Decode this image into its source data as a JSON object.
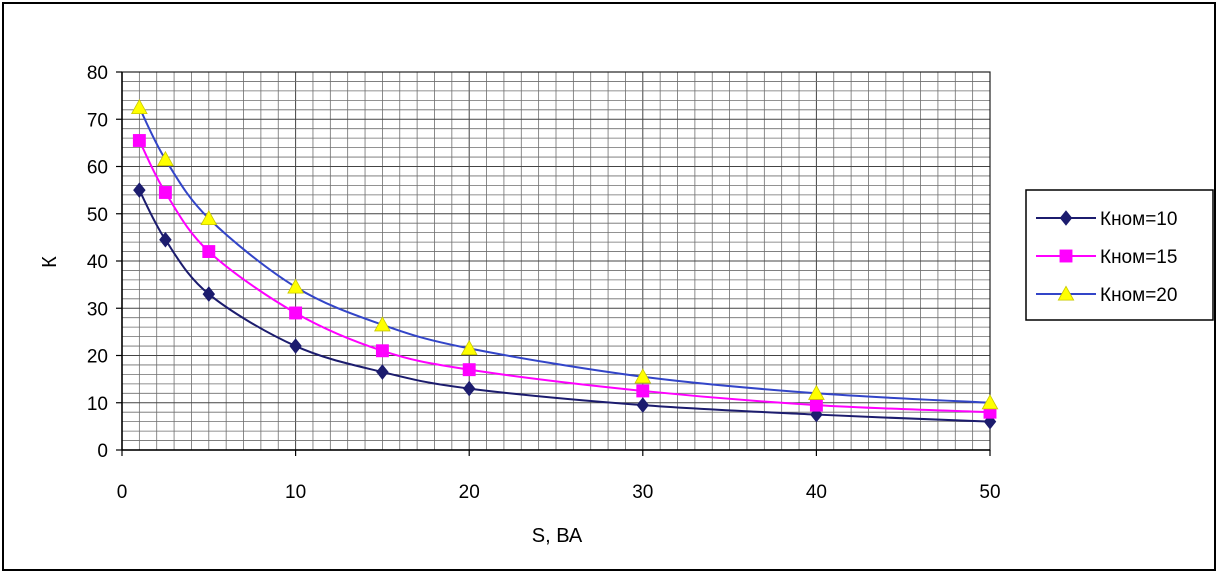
{
  "chart_data": {
    "type": "line",
    "xlabel": "S, ВА",
    "ylabel": "К",
    "xlim": [
      0,
      50
    ],
    "ylim": [
      0,
      80
    ],
    "x_ticks": [
      0,
      10,
      20,
      30,
      40,
      50
    ],
    "y_ticks": [
      0,
      10,
      20,
      30,
      40,
      50,
      60,
      70,
      80
    ],
    "x_minor_step": 1,
    "y_minor_step": 2,
    "grid": true,
    "legend_position": "right",
    "series": [
      {
        "name": "Кном=10",
        "color": "#1c1c6e",
        "marker": "diamond",
        "points": [
          [
            1,
            55
          ],
          [
            2.5,
            44.5
          ],
          [
            5,
            33
          ],
          [
            10,
            22
          ],
          [
            15,
            16.5
          ],
          [
            20,
            13
          ],
          [
            30,
            9.5
          ],
          [
            40,
            7.5
          ],
          [
            50,
            6
          ]
        ]
      },
      {
        "name": "Кном=15",
        "color": "#ff00ff",
        "marker": "square",
        "points": [
          [
            1,
            65.5
          ],
          [
            2.5,
            54.5
          ],
          [
            5,
            42
          ],
          [
            10,
            29
          ],
          [
            15,
            21
          ],
          [
            20,
            17
          ],
          [
            30,
            12.5
          ],
          [
            40,
            9.5
          ],
          [
            50,
            8
          ]
        ]
      },
      {
        "name": "Кном=20",
        "color": "#3345c8",
        "marker": "triangle",
        "marker_color": "#ffff00",
        "points": [
          [
            1,
            72.5
          ],
          [
            2.5,
            61.5
          ],
          [
            5,
            49
          ],
          [
            10,
            34.5
          ],
          [
            15,
            26.5
          ],
          [
            20,
            21.5
          ],
          [
            30,
            15.5
          ],
          [
            40,
            12
          ],
          [
            50,
            10
          ]
        ]
      }
    ]
  }
}
